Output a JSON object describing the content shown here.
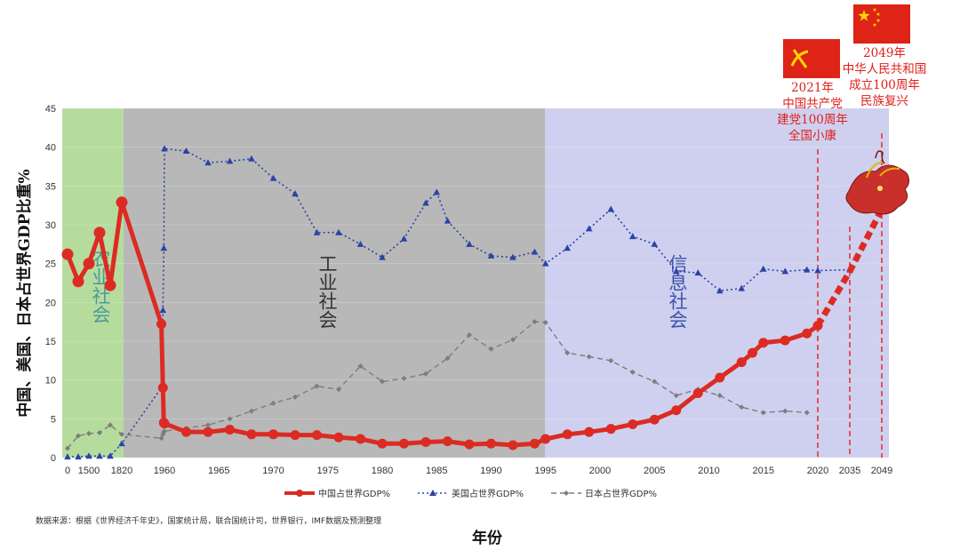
{
  "chart_data": {
    "type": "line",
    "title": "",
    "xlabel": "年份",
    "ylabel": "中国、美国、日本占世界GDP比重%",
    "ylim": [
      0,
      45
    ],
    "yticks": [
      0,
      5,
      10,
      15,
      20,
      25,
      30,
      35,
      40,
      45
    ],
    "grid": true,
    "x_tick_labels": [
      "0",
      "1500",
      "1820",
      "1960",
      "1965",
      "1970",
      "1975",
      "1980",
      "1985",
      "1990",
      "1995",
      "2000",
      "2005",
      "2010",
      "2015",
      "2020",
      "2035",
      "2049"
    ],
    "legend_position": "bottom",
    "eras": [
      {
        "label": "农业社会",
        "color": "#b6dc9d",
        "text_color": "#4a9a9a",
        "from": "0",
        "to": "1820"
      },
      {
        "label": "工业社会",
        "color": "#b8b8b8",
        "text_color": "#333333",
        "from": "1820",
        "to": "1995"
      },
      {
        "label": "信息社会",
        "color": "#cfd0ef",
        "text_color": "#3b53a8",
        "from": "1995",
        "to": "2049"
      }
    ],
    "annotations": [
      {
        "year": "2021",
        "lines": [
          "2021年",
          "中国共产党",
          "建党100周年",
          "全国小康"
        ],
        "icon": "party-flag-icon"
      },
      {
        "year": "2049",
        "lines": [
          "2049年",
          "中华人民共和国",
          "成立100周年",
          "民族复兴"
        ],
        "icon": "national-flag-icon"
      }
    ],
    "source_note": "数据来源：根据《世界经济千年史》，国家统计局，联合国统计司，世界银行，IMF数据及预测整理",
    "series": [
      {
        "name": "中国占世界GDP%",
        "color": "#dc2b22",
        "style": "solid-circle",
        "points": [
          [
            "0",
            26.2
          ],
          [
            "p1",
            22.7
          ],
          [
            "1500",
            25.0
          ],
          [
            "p2",
            29.0
          ],
          [
            "p3",
            22.2
          ],
          [
            "1820",
            32.9
          ],
          [
            1950,
            17.2
          ],
          [
            1955,
            9.0
          ],
          [
            1958,
            4.5
          ],
          [
            1960,
            4.4
          ],
          [
            1962,
            3.3
          ],
          [
            1964,
            3.3
          ],
          [
            1966,
            3.6
          ],
          [
            1968,
            3.0
          ],
          [
            1970,
            3.0
          ],
          [
            1972,
            2.9
          ],
          [
            1974,
            2.9
          ],
          [
            1976,
            2.6
          ],
          [
            1978,
            2.4
          ],
          [
            1980,
            1.8
          ],
          [
            1982,
            1.8
          ],
          [
            1984,
            2.0
          ],
          [
            1986,
            2.1
          ],
          [
            1988,
            1.7
          ],
          [
            1990,
            1.8
          ],
          [
            1992,
            1.6
          ],
          [
            1994,
            1.8
          ],
          [
            1995,
            2.4
          ],
          [
            1997,
            3.0
          ],
          [
            1999,
            3.3
          ],
          [
            2001,
            3.7
          ],
          [
            2003,
            4.3
          ],
          [
            2005,
            4.9
          ],
          [
            2007,
            6.1
          ],
          [
            2009,
            8.3
          ],
          [
            2011,
            10.3
          ],
          [
            2013,
            12.3
          ],
          [
            2014,
            13.5
          ],
          [
            2015,
            14.8
          ],
          [
            2017,
            15.1
          ],
          [
            2019,
            16.0
          ],
          [
            2020,
            17.0
          ],
          [
            2035,
            24.0
          ],
          [
            2049,
            32.0
          ]
        ],
        "projection_from": 2020
      },
      {
        "name": "美国占世界GDP%",
        "color": "#2b43a8",
        "style": "dotted-triangle",
        "points": [
          [
            "0",
            0.1
          ],
          [
            "p1",
            0.1
          ],
          [
            "1500",
            0.2
          ],
          [
            "p2",
            0.2
          ],
          [
            "p3",
            0.2
          ],
          [
            "1820",
            1.8
          ],
          [
            1950,
            9.0
          ],
          [
            1955,
            19.0
          ],
          [
            1958,
            27.0
          ],
          [
            1960,
            39.8
          ],
          [
            1962,
            39.5
          ],
          [
            1964,
            38.0
          ],
          [
            1966,
            38.2
          ],
          [
            1968,
            38.5
          ],
          [
            1970,
            36.0
          ],
          [
            1972,
            34.0
          ],
          [
            1974,
            29.0
          ],
          [
            1976,
            29.0
          ],
          [
            1978,
            27.5
          ],
          [
            1980,
            25.8
          ],
          [
            1982,
            28.2
          ],
          [
            1984,
            32.8
          ],
          [
            1985,
            34.2
          ],
          [
            1986,
            30.5
          ],
          [
            1988,
            27.5
          ],
          [
            1990,
            26.0
          ],
          [
            1992,
            25.8
          ],
          [
            1994,
            26.5
          ],
          [
            1995,
            25.0
          ],
          [
            1997,
            27.0
          ],
          [
            1999,
            29.5
          ],
          [
            2001,
            32.0
          ],
          [
            2003,
            28.5
          ],
          [
            2005,
            27.5
          ],
          [
            2007,
            24.0
          ],
          [
            2009,
            23.8
          ],
          [
            2011,
            21.5
          ],
          [
            2013,
            21.8
          ],
          [
            2015,
            24.3
          ],
          [
            2017,
            24.0
          ],
          [
            2019,
            24.2
          ],
          [
            2020,
            24.1
          ],
          [
            2035,
            24.2
          ]
        ]
      },
      {
        "name": "日本占世界GDP%",
        "color": "#7d7d7d",
        "style": "dashed-diamond",
        "points": [
          [
            "0",
            1.2
          ],
          [
            "p1",
            2.8
          ],
          [
            "1500",
            3.1
          ],
          [
            "p2",
            3.2
          ],
          [
            "p3",
            4.2
          ],
          [
            "1820",
            3.0
          ],
          [
            1950,
            2.5
          ],
          [
            1955,
            3.0
          ],
          [
            1958,
            3.3
          ],
          [
            1960,
            3.4
          ],
          [
            1962,
            3.8
          ],
          [
            1964,
            4.2
          ],
          [
            1966,
            5.0
          ],
          [
            1968,
            6.0
          ],
          [
            1970,
            7.0
          ],
          [
            1972,
            7.8
          ],
          [
            1974,
            9.2
          ],
          [
            1976,
            8.8
          ],
          [
            1978,
            11.8
          ],
          [
            1980,
            9.8
          ],
          [
            1982,
            10.2
          ],
          [
            1984,
            10.8
          ],
          [
            1986,
            12.8
          ],
          [
            1988,
            15.8
          ],
          [
            1990,
            14.0
          ],
          [
            1992,
            15.2
          ],
          [
            1994,
            17.5
          ],
          [
            1995,
            17.4
          ],
          [
            1997,
            13.5
          ],
          [
            1999,
            13.0
          ],
          [
            2001,
            12.5
          ],
          [
            2003,
            11.0
          ],
          [
            2005,
            9.8
          ],
          [
            2007,
            8.0
          ],
          [
            2009,
            8.8
          ],
          [
            2011,
            8.0
          ],
          [
            2013,
            6.5
          ],
          [
            2015,
            5.8
          ],
          [
            2017,
            6.0
          ],
          [
            2019,
            5.8
          ]
        ]
      }
    ]
  }
}
